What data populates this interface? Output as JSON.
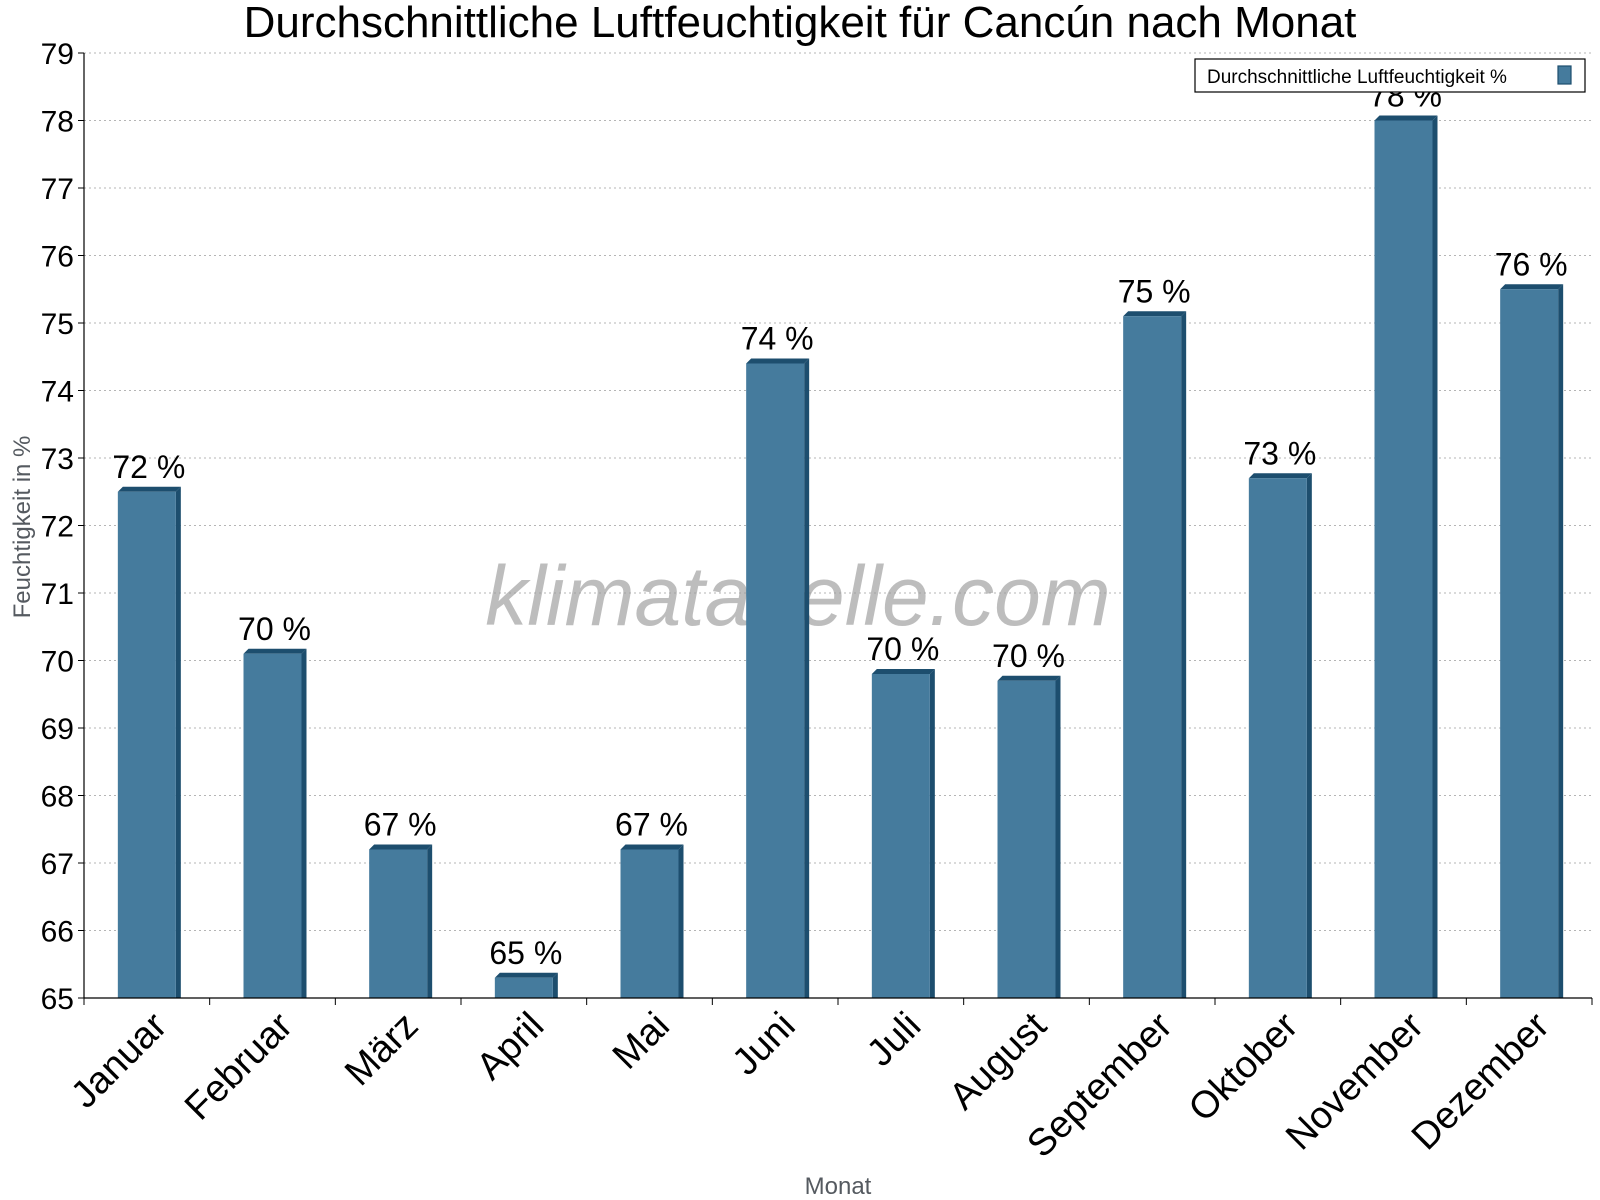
{
  "chart_data": {
    "type": "bar",
    "title": "Durchschnittliche Luftfeuchtigkeit für Cancún nach Monat",
    "xlabel": "Monat",
    "ylabel": "Feuchtigkeit in %",
    "ylim": [
      65,
      79
    ],
    "yticks": [
      "65",
      "66",
      "67",
      "68",
      "69",
      "70",
      "71",
      "72",
      "73",
      "74",
      "75",
      "76",
      "77",
      "78",
      "79"
    ],
    "grid": true,
    "legend_position": "top-right",
    "categories": [
      "Januar",
      "Februar",
      "März",
      "April",
      "Mai",
      "Juni",
      "Juli",
      "August",
      "September",
      "Oktober",
      "November",
      "Dezember"
    ],
    "series": [
      {
        "name": "Durchschnittliche Luftfeuchtigkeit %",
        "values": [
          72.5,
          70.1,
          67.2,
          65.3,
          67.2,
          74.4,
          69.8,
          69.7,
          75.1,
          72.7,
          78.0,
          75.5
        ],
        "labels": [
          "72 %",
          "70 %",
          "67 %",
          "65 %",
          "67 %",
          "74 %",
          "70 %",
          "70 %",
          "75 %",
          "73 %",
          "78 %",
          "76 %"
        ],
        "color": "#457b9d",
        "edge_color": "#1d4e6e"
      }
    ],
    "watermark": "klimatabelle.com"
  }
}
